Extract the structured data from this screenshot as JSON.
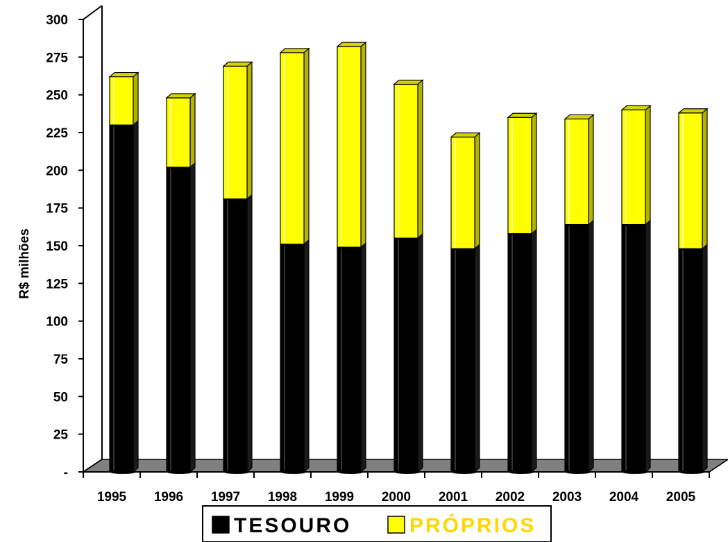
{
  "chart_data": {
    "type": "bar",
    "stacked": true,
    "three_d": true,
    "title": "",
    "xlabel": "",
    "ylabel": "R$ milhões",
    "ylim": [
      0,
      300
    ],
    "yticks": [
      0,
      25,
      50,
      75,
      100,
      125,
      150,
      175,
      200,
      225,
      250,
      275,
      300
    ],
    "ytick_labels": [
      "-",
      "25",
      "50",
      "75",
      "100",
      "125",
      "150",
      "175",
      "200",
      "225",
      "250",
      "275",
      "300"
    ],
    "categories": [
      "1995",
      "1996",
      "1997",
      "1998",
      "1999",
      "2000",
      "2001",
      "2002",
      "2003",
      "2004",
      "2005"
    ],
    "series": [
      {
        "name": "TESOURO",
        "color": "#000000",
        "values": [
          230,
          202,
          181,
          151,
          149,
          155,
          148,
          158,
          164,
          164,
          148
        ]
      },
      {
        "name": "PRÓPRIOS",
        "color": "#ffff00",
        "values": [
          32,
          46,
          88,
          127,
          133,
          102,
          74,
          77,
          70,
          76,
          90
        ]
      }
    ],
    "grid": false,
    "legend_position": "bottom",
    "colors": {
      "floor": "#808080",
      "side_dark_yellow": "#b3b300",
      "top_yellow": "#d4d400"
    }
  }
}
